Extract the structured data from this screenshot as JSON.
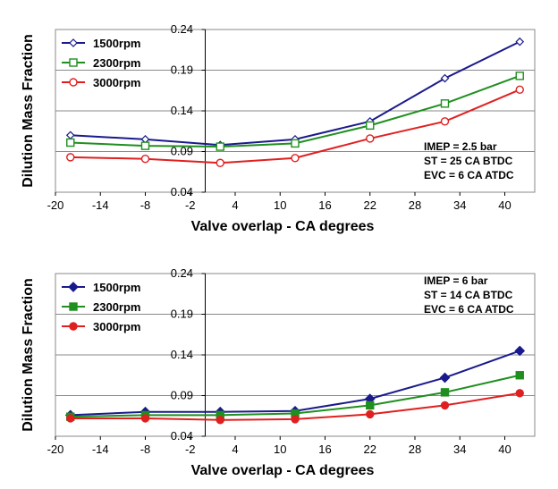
{
  "chart_data": [
    {
      "type": "line",
      "title": "",
      "xlabel": "Valve overlap  -  CA degrees",
      "ylabel": "Dilution Mass Fraction",
      "xlim": [
        -20,
        44
      ],
      "ylim": [
        0.04,
        0.24
      ],
      "xticks": [
        "-20",
        "-14",
        "-8",
        "-2",
        "4",
        "10",
        "16",
        "22",
        "28",
        "34",
        "40"
      ],
      "yticks": [
        "0.04",
        "0.09",
        "0.14",
        "0.19",
        "0.24"
      ],
      "x": [
        -18,
        -8,
        2,
        12,
        22,
        32,
        42
      ],
      "series": [
        {
          "name": "1500rpm",
          "color": "#1a1a8c",
          "marker": "diamond-open",
          "values": [
            0.11,
            0.105,
            0.098,
            0.105,
            0.127,
            0.18,
            0.225
          ]
        },
        {
          "name": "2300rpm",
          "color": "#1f8f1f",
          "marker": "square-open",
          "values": [
            0.101,
            0.097,
            0.096,
            0.1,
            0.122,
            0.149,
            0.183
          ]
        },
        {
          "name": "3000rpm",
          "color": "#e02020",
          "marker": "circle-open",
          "values": [
            0.083,
            0.081,
            0.076,
            0.082,
            0.106,
            0.127,
            0.166
          ]
        }
      ],
      "legend": "top-left",
      "annotations": [
        "IMEP = 2.5 bar",
        "ST = 25 CA BTDC",
        "EVC = 6 CA ATDC"
      ]
    },
    {
      "type": "line",
      "title": "",
      "xlabel": "Valve overlap  -  CA degrees",
      "ylabel": "Dilution Mass Fraction",
      "xlim": [
        -20,
        44
      ],
      "ylim": [
        0.04,
        0.24
      ],
      "xticks": [
        "-20",
        "-14",
        "-8",
        "-2",
        "4",
        "10",
        "16",
        "22",
        "28",
        "34",
        "40"
      ],
      "yticks": [
        "0.04",
        "0.09",
        "0.14",
        "0.19",
        "0.24"
      ],
      "x": [
        -18,
        -8,
        2,
        12,
        22,
        32,
        42
      ],
      "series": [
        {
          "name": "1500rpm",
          "color": "#1a1a8c",
          "marker": "diamond-filled",
          "values": [
            0.066,
            0.07,
            0.07,
            0.071,
            0.086,
            0.112,
            0.145
          ]
        },
        {
          "name": "2300rpm",
          "color": "#1f8f1f",
          "marker": "square-filled",
          "values": [
            0.064,
            0.066,
            0.066,
            0.068,
            0.078,
            0.094,
            0.115
          ]
        },
        {
          "name": "3000rpm",
          "color": "#e02020",
          "marker": "circle-filled",
          "values": [
            0.062,
            0.062,
            0.06,
            0.061,
            0.067,
            0.078,
            0.093
          ]
        }
      ],
      "legend": "top-left",
      "annotations": [
        "IMEP = 6 bar",
        "ST = 14 CA BTDC",
        "EVC = 6 CA ATDC"
      ]
    }
  ]
}
